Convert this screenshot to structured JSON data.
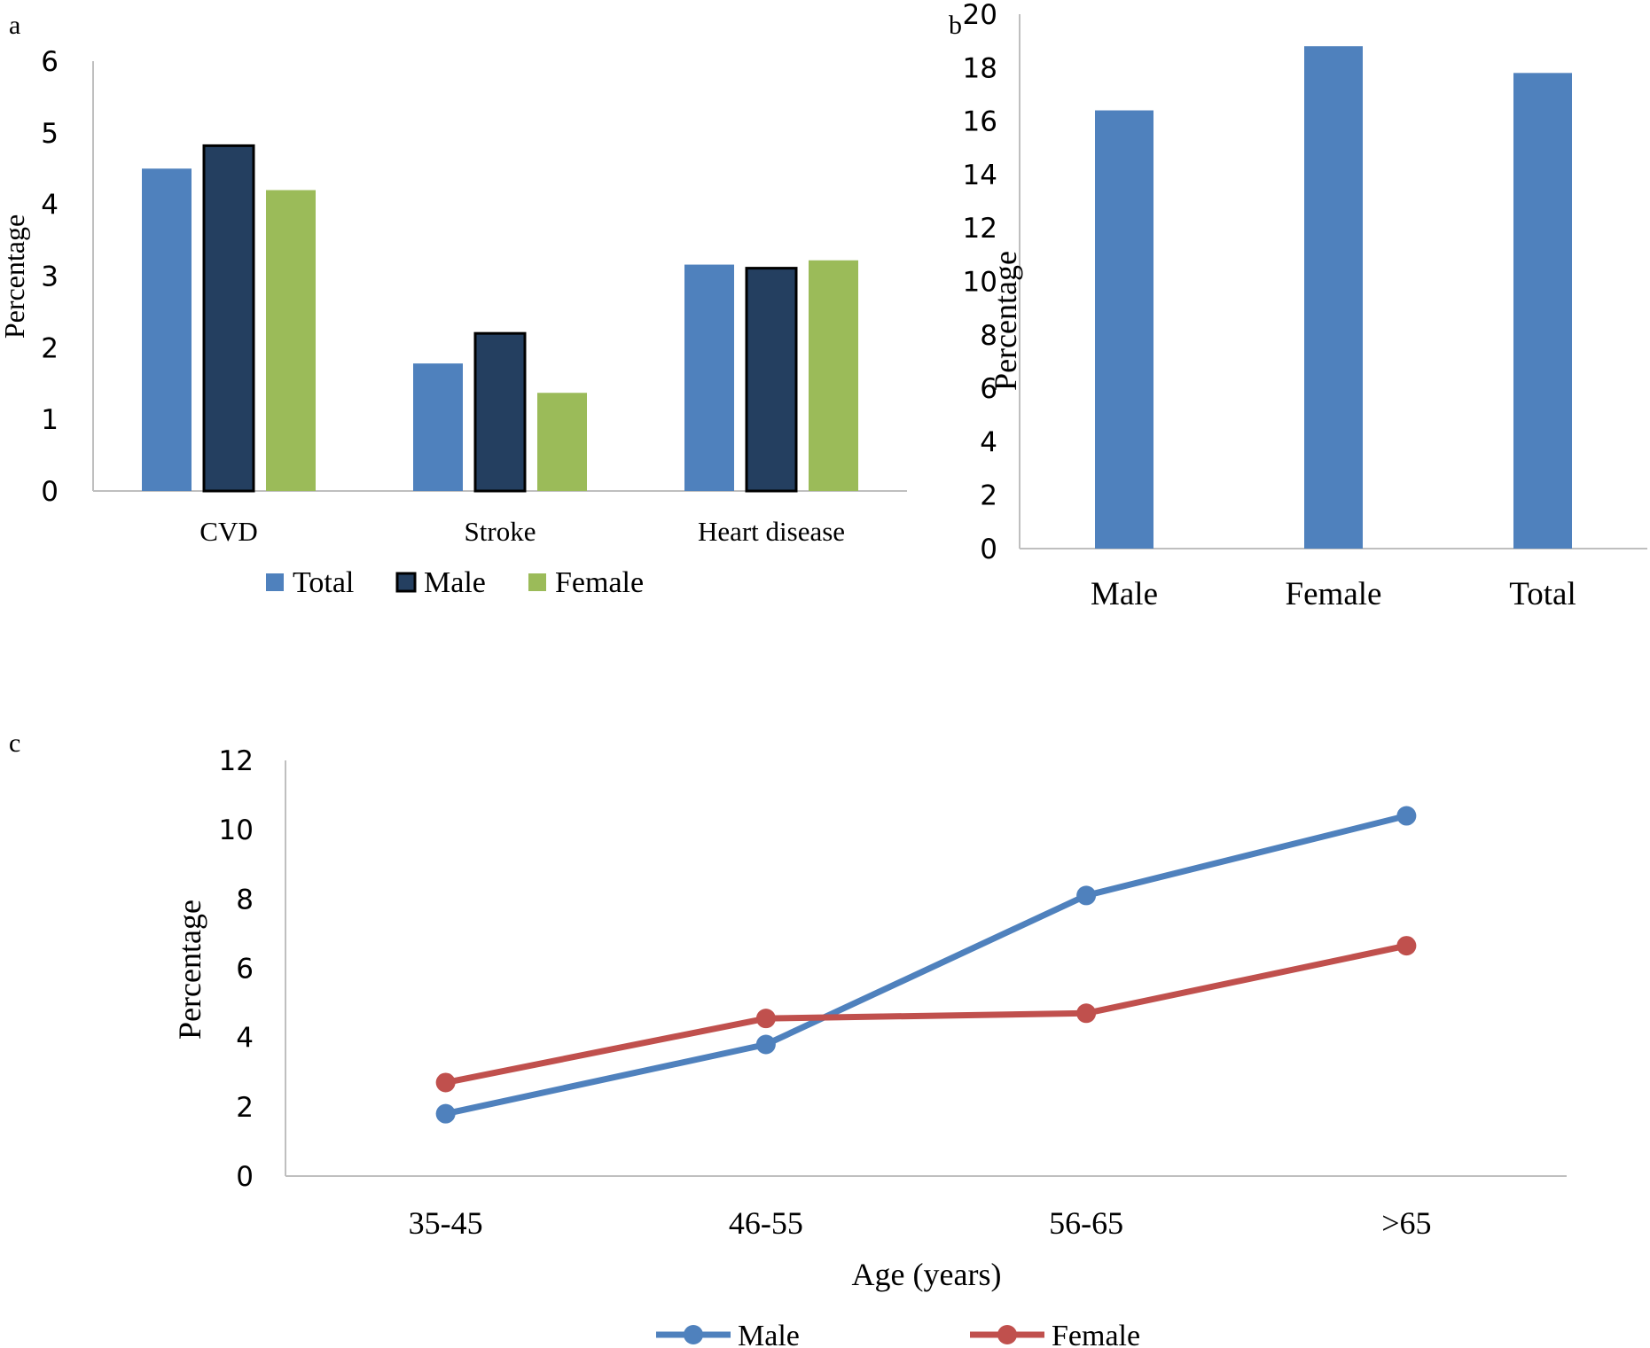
{
  "panels": {
    "a": {
      "label": "a"
    },
    "b": {
      "label": "b"
    },
    "c": {
      "label": "c"
    }
  },
  "colors": {
    "total": "#4F81BD",
    "male_bar": "#243F60",
    "female_bar": "#9BBB59",
    "male_line": "#4F81BD",
    "female_line": "#C0504D",
    "axis": "#BFBFBF"
  },
  "chart_data": [
    {
      "panel": "a",
      "type": "bar",
      "categories": [
        "CVD",
        "Stroke",
        "Heart disease"
      ],
      "series": [
        {
          "name": "Total",
          "values": [
            4.5,
            1.78,
            3.16
          ]
        },
        {
          "name": "Male",
          "values": [
            4.82,
            2.2,
            3.11
          ]
        },
        {
          "name": "Female",
          "values": [
            4.2,
            1.37,
            3.22
          ]
        }
      ],
      "ylabel": "Percentage",
      "ylim": [
        0,
        6
      ],
      "yticks": [
        "0",
        "1",
        "2",
        "3",
        "4",
        "5",
        "6"
      ],
      "legend": "bottom",
      "grid": false
    },
    {
      "panel": "b",
      "type": "bar",
      "categories": [
        "Male",
        "Female",
        "Total"
      ],
      "values": [
        16.4,
        18.8,
        17.8
      ],
      "ylabel": "Percentage",
      "ylim": [
        0,
        20
      ],
      "yticks": [
        "0",
        "2",
        "4",
        "6",
        "8",
        "10",
        "12",
        "14",
        "16",
        "18",
        "20"
      ],
      "grid": false
    },
    {
      "panel": "c",
      "type": "line",
      "categories": [
        "35-45",
        "46-55",
        "56-65",
        ">65"
      ],
      "series": [
        {
          "name": "Male",
          "values": [
            1.8,
            3.8,
            8.1,
            10.4
          ]
        },
        {
          "name": "Female",
          "values": [
            2.7,
            4.55,
            4.7,
            6.65
          ]
        }
      ],
      "xlabel": "Age (years)",
      "ylabel": "Percentage",
      "ylim": [
        0,
        12
      ],
      "yticks": [
        "0",
        "2",
        "4",
        "6",
        "8",
        "10",
        "12"
      ],
      "legend": "bottom",
      "grid": false
    }
  ]
}
